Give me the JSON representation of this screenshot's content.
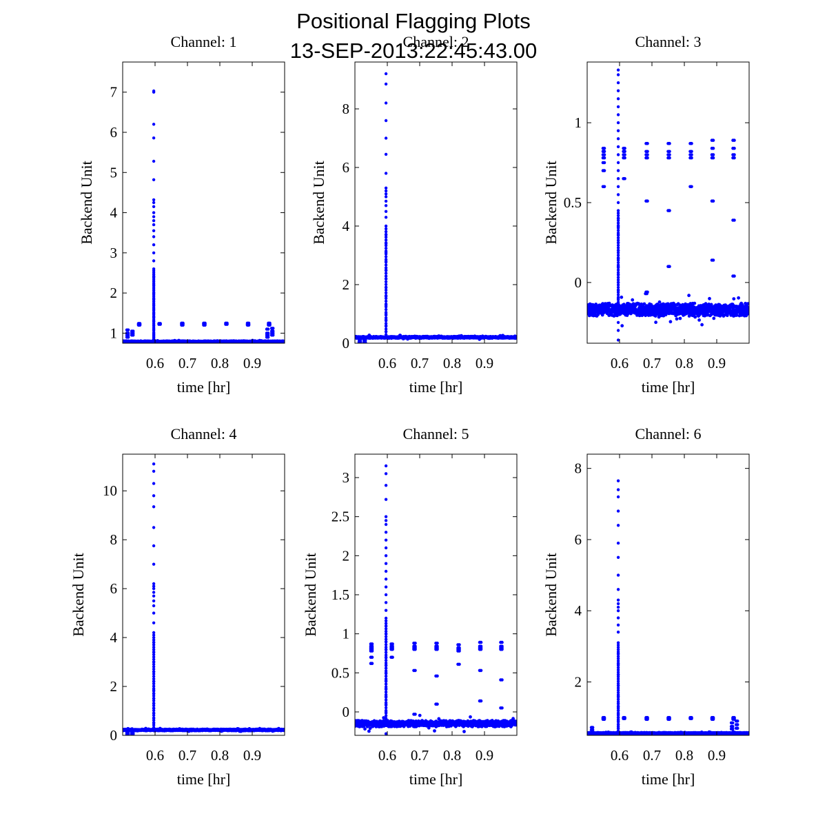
{
  "figure": {
    "title_line1": "Positional Flagging Plots",
    "title_line2": "13-SEP-2013:22:45:43.00",
    "marker_color": "#0000ff"
  },
  "chart_data": [
    {
      "type": "scatter",
      "title": "Channel: 1",
      "xlabel": "time [hr]",
      "ylabel": "Backend Unit",
      "xlim": [
        0.5,
        1.0
      ],
      "ylim": [
        0.75,
        7.75
      ],
      "xticks": [
        0.6,
        0.7,
        0.8,
        0.9
      ],
      "xtick_labels": [
        "0.6",
        "0.7",
        "0.8",
        "0.9"
      ],
      "yticks": [
        1,
        2,
        3,
        4,
        5,
        6,
        7
      ],
      "ytick_labels": [
        "1",
        "2",
        "3",
        "4",
        "5",
        "6",
        "7"
      ],
      "grid": false,
      "baseline": 0.79,
      "noise": 0.015,
      "spike_x": 0.596,
      "spike_values": [
        7.03,
        7.0,
        6.2,
        5.86,
        5.28,
        4.82,
        4.32,
        4.25,
        4.15,
        4.0,
        3.9,
        3.8,
        3.7,
        3.55,
        3.4,
        3.2,
        3.0,
        2.8,
        2.6,
        2.4,
        2.2,
        2.0,
        1.85,
        1.7,
        1.6,
        1.5,
        1.4,
        1.3,
        1.2,
        1.1,
        1.0,
        0.95,
        0.9,
        0.85
      ],
      "events": [
        {
          "x": 0.549,
          "values": [
            1.24,
            1.22,
            1.2
          ]
        },
        {
          "x": 0.612,
          "values": [
            1.24,
            1.22
          ]
        },
        {
          "x": 0.682,
          "values": [
            1.25,
            1.23,
            1.2
          ]
        },
        {
          "x": 0.75,
          "values": [
            1.25,
            1.23,
            1.2
          ]
        },
        {
          "x": 0.818,
          "values": [
            1.25,
            1.22
          ]
        },
        {
          "x": 0.885,
          "values": [
            1.25,
            1.22,
            1.2
          ]
        },
        {
          "x": 0.95,
          "values": [
            1.25,
            1.22,
            1.2
          ]
        },
        {
          "x": 0.513,
          "values": [
            1.08,
            1.0,
            0.95,
            0.9
          ]
        },
        {
          "x": 0.528,
          "values": [
            1.05,
            1.0,
            0.95
          ]
        },
        {
          "x": 0.945,
          "values": [
            1.1,
            1.0,
            0.95,
            0.9
          ]
        },
        {
          "x": 0.96,
          "values": [
            1.12,
            1.05,
            1.0,
            0.95
          ]
        }
      ]
    },
    {
      "type": "scatter",
      "title": "Channel: 2",
      "xlabel": "time [hr]",
      "ylabel": "Backend Unit",
      "xlim": [
        0.5,
        1.0
      ],
      "ylim": [
        0.0,
        9.6
      ],
      "xticks": [
        0.6,
        0.7,
        0.8,
        0.9
      ],
      "xtick_labels": [
        "0.6",
        "0.7",
        "0.8",
        "0.9"
      ],
      "yticks": [
        0,
        2,
        4,
        6,
        8
      ],
      "ytick_labels": [
        "0",
        "2",
        "4",
        "6",
        "8"
      ],
      "grid": false,
      "baseline": 0.2,
      "noise": 0.03,
      "spike_x": 0.596,
      "spike_values": [
        9.2,
        8.85,
        8.2,
        7.6,
        7.0,
        6.45,
        5.8,
        5.3,
        5.2,
        5.1,
        5.0,
        4.85,
        4.7,
        4.5,
        4.3,
        4.0,
        3.7,
        3.4,
        3.1,
        2.8,
        2.5,
        2.2,
        1.9,
        1.6,
        1.3,
        1.0,
        0.8,
        0.6,
        0.4
      ],
      "events": [
        {
          "x": 0.513,
          "values": [
            0.12,
            0.05,
            0.0
          ]
        },
        {
          "x": 0.528,
          "values": [
            0.1,
            0.03
          ]
        }
      ]
    },
    {
      "type": "scatter",
      "title": "Channel: 3",
      "xlabel": "time [hr]",
      "ylabel": "Backend Unit",
      "xlim": [
        0.5,
        1.0
      ],
      "ylim": [
        -0.38,
        1.38
      ],
      "xticks": [
        0.6,
        0.7,
        0.8,
        0.9
      ],
      "xtick_labels": [
        "0.6",
        "0.7",
        "0.8",
        "0.9"
      ],
      "yticks": [
        0,
        0.5,
        1
      ],
      "ytick_labels": [
        "0",
        "0.5",
        "1"
      ],
      "grid": false,
      "baseline": -0.17,
      "noise": 0.04,
      "spike_x": 0.596,
      "spike_values": [
        1.33,
        1.3,
        1.25,
        1.2,
        1.15,
        1.1,
        1.05,
        1.0,
        0.95,
        0.9,
        0.85,
        0.8,
        0.75,
        0.7,
        0.65,
        0.6,
        0.55,
        0.5,
        0.45,
        0.4,
        0.35,
        0.3,
        0.25,
        0.2,
        0.15,
        0.1,
        0.05,
        0.0,
        -0.05,
        -0.1,
        -0.25,
        -0.3,
        -0.36
      ],
      "events": [
        {
          "x": 0.549,
          "values": [
            0.84,
            0.82,
            0.8,
            0.78,
            0.75,
            0.7,
            0.6
          ]
        },
        {
          "x": 0.612,
          "values": [
            0.84,
            0.82,
            0.8,
            0.78,
            0.65
          ]
        },
        {
          "x": 0.682,
          "values": [
            0.87,
            0.82,
            0.8,
            0.78,
            0.51
          ]
        },
        {
          "x": 0.75,
          "values": [
            0.87,
            0.82,
            0.8,
            0.78,
            0.45,
            0.1
          ]
        },
        {
          "x": 0.818,
          "values": [
            0.87,
            0.82,
            0.8,
            0.78,
            0.6
          ]
        },
        {
          "x": 0.885,
          "values": [
            0.89,
            0.84,
            0.8,
            0.78,
            0.51,
            0.14
          ]
        },
        {
          "x": 0.95,
          "values": [
            0.89,
            0.84,
            0.8,
            0.78,
            0.39,
            0.04
          ]
        },
        {
          "x": 0.68,
          "values": [
            -0.07
          ]
        },
        {
          "x": 0.682,
          "values": [
            -0.06
          ]
        }
      ]
    },
    {
      "type": "scatter",
      "title": "Channel: 4",
      "xlabel": "time [hr]",
      "ylabel": "Backend Unit",
      "xlim": [
        0.5,
        1.0
      ],
      "ylim": [
        0.0,
        11.5
      ],
      "xticks": [
        0.6,
        0.7,
        0.8,
        0.9
      ],
      "xtick_labels": [
        "0.6",
        "0.7",
        "0.8",
        "0.9"
      ],
      "yticks": [
        0,
        2,
        4,
        6,
        8,
        10
      ],
      "ytick_labels": [
        "0",
        "2",
        "4",
        "6",
        "8",
        "10"
      ],
      "grid": false,
      "baseline": 0.22,
      "noise": 0.03,
      "spike_x": 0.596,
      "spike_values": [
        11.1,
        10.8,
        10.3,
        9.8,
        9.35,
        8.5,
        7.75,
        7.0,
        6.2,
        6.1,
        6.0,
        5.85,
        5.7,
        5.5,
        5.3,
        5.0,
        4.6,
        4.2,
        3.8,
        3.4,
        3.0,
        2.6,
        2.2,
        1.85,
        1.7,
        1.5,
        1.3,
        1.1,
        0.9,
        0.7,
        0.5
      ],
      "events": [
        {
          "x": 0.513,
          "values": [
            0.1,
            0.05,
            0.0
          ]
        },
        {
          "x": 0.528,
          "values": [
            0.1,
            0.05
          ]
        }
      ]
    },
    {
      "type": "scatter",
      "title": "Channel: 5",
      "xlabel": "time [hr]",
      "ylabel": "Backend Unit",
      "xlim": [
        0.5,
        1.0
      ],
      "ylim": [
        -0.3,
        3.3
      ],
      "xticks": [
        0.6,
        0.7,
        0.8,
        0.9
      ],
      "xtick_labels": [
        "0.6",
        "0.7",
        "0.8",
        "0.9"
      ],
      "yticks": [
        0,
        0.5,
        1,
        1.5,
        2,
        2.5,
        3
      ],
      "ytick_labels": [
        "0",
        "0.5",
        "1",
        "1.5",
        "2",
        "2.5",
        "3"
      ],
      "grid": false,
      "baseline": -0.15,
      "noise": 0.04,
      "spike_x": 0.596,
      "spike_values": [
        3.15,
        3.05,
        2.9,
        2.72,
        2.5,
        2.45,
        2.4,
        2.3,
        2.2,
        2.1,
        2.0,
        1.9,
        1.8,
        1.7,
        1.6,
        1.5,
        1.4,
        1.3,
        1.2,
        1.1,
        1.0,
        0.9,
        0.8,
        0.7,
        0.6,
        0.5,
        0.4,
        0.3,
        0.2,
        0.1,
        0.0,
        -0.1,
        -0.28
      ],
      "events": [
        {
          "x": 0.549,
          "values": [
            0.87,
            0.84,
            0.82,
            0.8,
            0.78,
            0.7,
            0.62
          ]
        },
        {
          "x": 0.612,
          "values": [
            0.87,
            0.84,
            0.82,
            0.8,
            0.7
          ]
        },
        {
          "x": 0.682,
          "values": [
            0.88,
            0.84,
            0.82,
            0.8,
            0.53
          ]
        },
        {
          "x": 0.75,
          "values": [
            0.88,
            0.84,
            0.82,
            0.8,
            0.46,
            0.1
          ]
        },
        {
          "x": 0.818,
          "values": [
            0.86,
            0.82,
            0.8,
            0.78,
            0.61
          ]
        },
        {
          "x": 0.885,
          "values": [
            0.89,
            0.84,
            0.82,
            0.8,
            0.53,
            0.14
          ]
        },
        {
          "x": 0.95,
          "values": [
            0.89,
            0.84,
            0.82,
            0.8,
            0.41,
            0.05
          ]
        },
        {
          "x": 0.682,
          "values": [
            -0.03
          ]
        }
      ]
    },
    {
      "type": "scatter",
      "title": "Channel: 6",
      "xlabel": "time [hr]",
      "ylabel": "Backend Unit",
      "xlim": [
        0.5,
        1.0
      ],
      "ylim": [
        0.5,
        8.4
      ],
      "xticks": [
        0.6,
        0.7,
        0.8,
        0.9
      ],
      "xtick_labels": [
        "0.6",
        "0.7",
        "0.8",
        "0.9"
      ],
      "yticks": [
        2,
        4,
        6,
        8
      ],
      "ytick_labels": [
        "2",
        "4",
        "6",
        "8"
      ],
      "grid": false,
      "baseline": 0.56,
      "noise": 0.015,
      "spike_x": 0.596,
      "spike_values": [
        7.65,
        7.4,
        7.2,
        6.8,
        6.4,
        5.9,
        5.5,
        5.0,
        4.6,
        4.3,
        4.2,
        4.1,
        4.0,
        3.8,
        3.6,
        3.4,
        3.1,
        2.8,
        2.5,
        2.2,
        1.9,
        1.6,
        1.4,
        1.3,
        1.2,
        1.1,
        1.0,
        0.9,
        0.8,
        0.7
      ],
      "events": [
        {
          "x": 0.549,
          "values": [
            1.0,
            0.98,
            0.95
          ]
        },
        {
          "x": 0.612,
          "values": [
            1.0,
            0.97
          ]
        },
        {
          "x": 0.682,
          "values": [
            1.0,
            0.98,
            0.95
          ]
        },
        {
          "x": 0.75,
          "values": [
            1.0,
            0.98,
            0.95
          ]
        },
        {
          "x": 0.818,
          "values": [
            1.0,
            0.97
          ]
        },
        {
          "x": 0.885,
          "values": [
            1.0,
            0.98,
            0.95
          ]
        },
        {
          "x": 0.95,
          "values": [
            1.0,
            0.98,
            0.95
          ]
        },
        {
          "x": 0.513,
          "values": [
            0.72,
            0.65
          ]
        },
        {
          "x": 0.945,
          "values": [
            0.85,
            0.75,
            0.68
          ]
        },
        {
          "x": 0.96,
          "values": [
            0.9,
            0.8,
            0.7
          ]
        }
      ]
    }
  ]
}
